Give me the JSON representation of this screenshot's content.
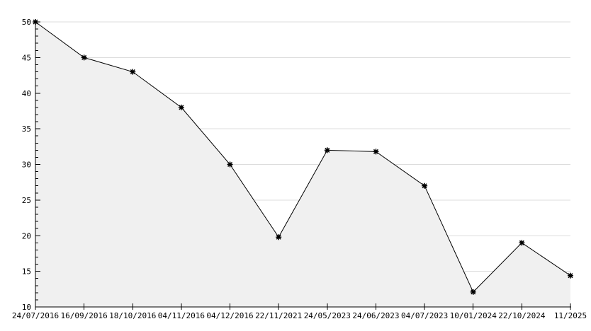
{
  "chart_data": {
    "type": "area",
    "title": "",
    "xlabel": "",
    "ylabel": "",
    "x_labels": [
      "24/07/2016",
      "16/09/2016",
      "18/10/2016",
      "04/11/2016",
      "04/12/2016",
      "22/11/2021",
      "24/05/2023",
      "24/06/2023",
      "04/07/2023",
      "10/01/2024",
      "22/10/2024",
      "11/2025"
    ],
    "values": [
      50,
      45,
      43,
      38,
      30,
      19.8,
      32,
      31.8,
      27,
      12.1,
      19,
      14.4
    ],
    "ylim": [
      10,
      50
    ],
    "y_major_step": 5,
    "y_minor_step": 1,
    "y_tick_labels": [
      "10",
      "15",
      "20",
      "25",
      "30",
      "35",
      "40",
      "45",
      "50"
    ],
    "grid": true,
    "legend": "none",
    "marker": "asterisk",
    "colors": {
      "line": "#000000",
      "marker": "#000000",
      "area_fill": "#f0f0f0",
      "gridline": "#dcdcdc",
      "axis": "#000000",
      "text": "#000000",
      "background": "#ffffff"
    }
  }
}
